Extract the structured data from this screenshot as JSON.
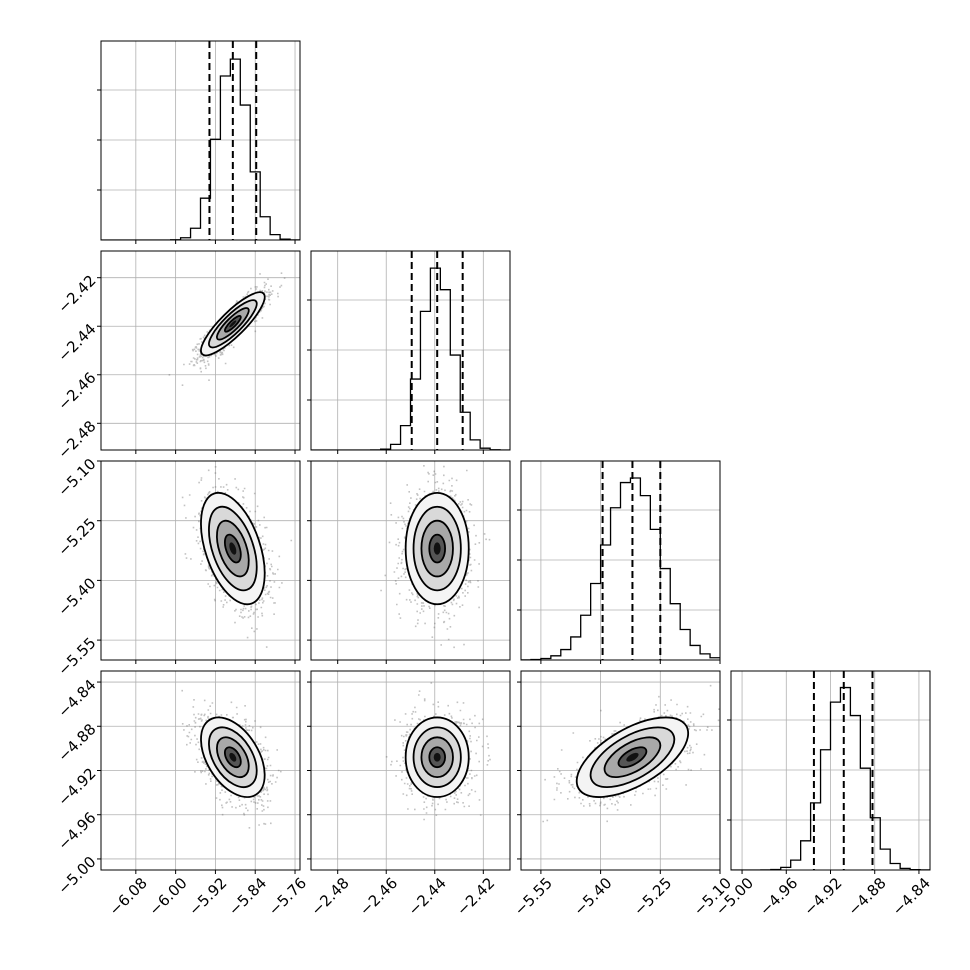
{
  "chart_data": {
    "type": "corner",
    "parameters": [
      {
        "median": -5.885,
        "sigma": 0.032,
        "lo": -6.15,
        "hi": -5.75,
        "quantiles": [
          -5.932,
          -5.885,
          -5.838
        ],
        "ticks": [
          -6.08,
          -6.0,
          -5.92,
          -5.84,
          -5.76
        ],
        "tick_labels": [
          "−6.08",
          "−6.00",
          "−5.92",
          "−5.84",
          "−5.76"
        ]
      },
      {
        "median": -2.439,
        "sigma": 0.0065,
        "lo": -2.491,
        "hi": -2.409,
        "quantiles": [
          -2.4495,
          -2.439,
          -2.4285
        ],
        "ticks": [
          -2.48,
          -2.46,
          -2.44,
          -2.42
        ],
        "tick_labels": [
          "−2.48",
          "−2.46",
          "−2.44",
          "−2.42"
        ]
      },
      {
        "median": -5.32,
        "sigma": 0.07,
        "lo": -5.6,
        "hi": -5.1,
        "quantiles": [
          -5.395,
          -5.32,
          -5.25
        ],
        "ticks": [
          -5.55,
          -5.4,
          -5.25,
          -5.1
        ],
        "tick_labels": [
          "−5.55",
          "−5.40",
          "−5.25",
          "−5.10"
        ]
      },
      {
        "median": -4.908,
        "sigma": 0.018,
        "lo": -5.01,
        "hi": -4.83,
        "quantiles": [
          -4.935,
          -4.908,
          -4.882
        ],
        "ticks": [
          -5.0,
          -4.96,
          -4.92,
          -4.88,
          -4.84
        ],
        "tick_labels": [
          "−5.00",
          "−4.96",
          "−4.92",
          "−4.88",
          "−4.84"
        ]
      }
    ],
    "correlations": [
      [
        1.0,
        0.85,
        -0.45,
        -0.45
      ],
      [
        0.85,
        1.0,
        0.0,
        0.0
      ],
      [
        -0.45,
        0.0,
        1.0,
        0.6
      ],
      [
        -0.45,
        0.0,
        0.6,
        1.0
      ]
    ],
    "contour_levels_sigma": [
      0.5,
      1.0,
      1.5,
      2.0
    ],
    "grid": true,
    "colors": {
      "points": "#777777",
      "lines": "#000000",
      "grid": "#b0b0b0"
    }
  }
}
